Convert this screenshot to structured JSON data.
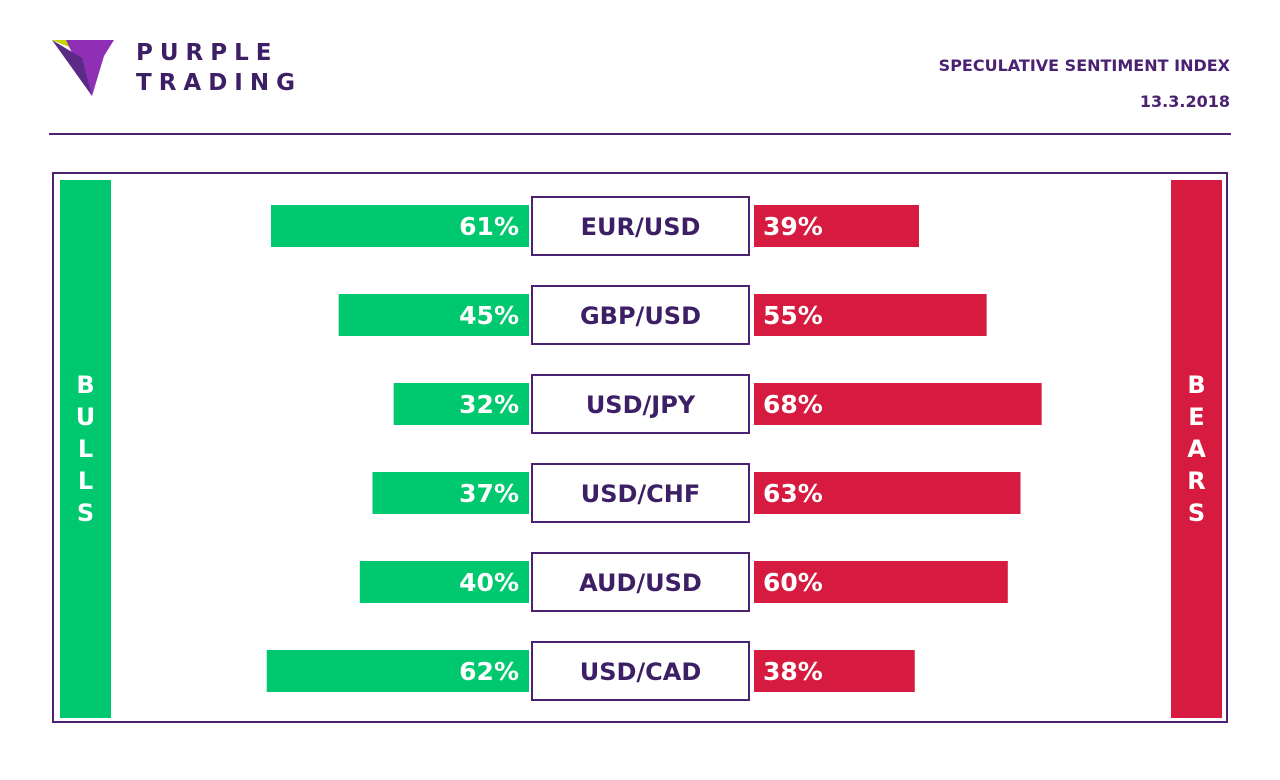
{
  "brand": {
    "name_line1": "PURPLE",
    "name_line2": "TRADING",
    "logo_icon": "purple-v-logo-icon",
    "colors": {
      "purple": "#4b2272",
      "lime": "#c8d400",
      "violet": "#8f2fb5"
    }
  },
  "header": {
    "title": "SPECULATIVE SENTIMENT INDEX",
    "date": "13.3.2018"
  },
  "side_labels": {
    "bulls": "BULLS",
    "bears": "BEARS"
  },
  "colors": {
    "bull": "#00c86e",
    "bear": "#d71a3f",
    "label_text": "#3d1f66",
    "frame": "#4b2272"
  },
  "chart_data": {
    "type": "bar",
    "categories": [
      "EUR/USD",
      "GBP/USD",
      "USD/JPY",
      "USD/CHF",
      "AUD/USD",
      "USD/CAD"
    ],
    "series": [
      {
        "name": "BULLS",
        "values": [
          61,
          45,
          32,
          37,
          40,
          62
        ]
      },
      {
        "name": "BEARS",
        "values": [
          39,
          55,
          68,
          63,
          60,
          38
        ]
      }
    ],
    "unit": "%",
    "ylim": [
      0,
      100
    ]
  }
}
